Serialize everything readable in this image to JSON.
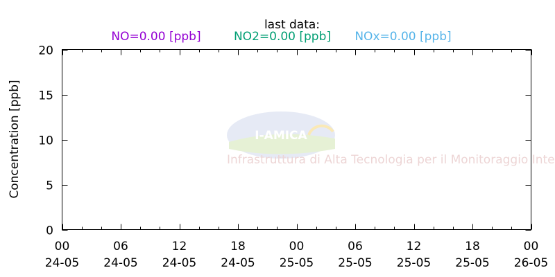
{
  "chart_data": {
    "type": "line",
    "title": "last data:",
    "ylabel": "Concentration [ppb]",
    "xlabel": "",
    "ylim": [
      0,
      20
    ],
    "yticks": [
      0,
      5,
      10,
      15,
      20
    ],
    "xlim_hours": [
      0,
      48
    ],
    "xticks": [
      {
        "hour": "00",
        "date": "24-05"
      },
      {
        "hour": "06",
        "date": "24-05"
      },
      {
        "hour": "12",
        "date": "24-05"
      },
      {
        "hour": "18",
        "date": "24-05"
      },
      {
        "hour": "00",
        "date": "25-05"
      },
      {
        "hour": "06",
        "date": "25-05"
      },
      {
        "hour": "12",
        "date": "25-05"
      },
      {
        "hour": "18",
        "date": "25-05"
      },
      {
        "hour": "00",
        "date": "26-05"
      }
    ],
    "minor_tick_interval_hours": 2,
    "grid": false,
    "legend_placement": "top",
    "series": [
      {
        "name": "NO=0.00 [ppb]",
        "color": "#9400d3",
        "values": []
      },
      {
        "name": "NO2=0.00 [ppb]",
        "color": "#009e73",
        "values": []
      },
      {
        "name": "NOx=0.00 [ppb]",
        "color": "#56b4e9",
        "values": []
      }
    ],
    "watermark": {
      "logo_text": "I-AMICA",
      "subtitle": "Infrastruttura di Alta Tecnologia per il Monitoraggio Integrato Climatico-Ambientale"
    }
  }
}
